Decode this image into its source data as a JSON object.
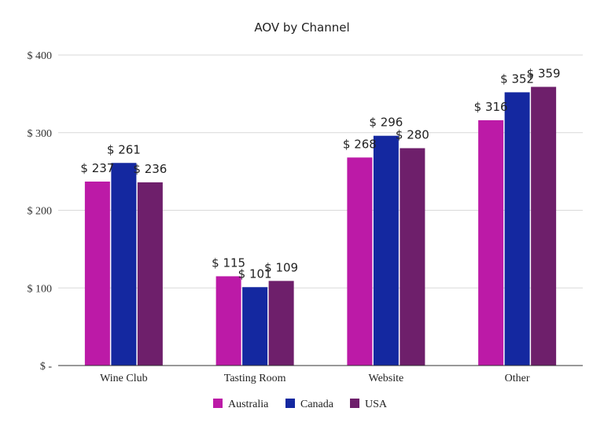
{
  "chart_data": {
    "type": "bar",
    "title": "AOV by Channel",
    "categories": [
      "Wine Club",
      "Tasting Room",
      "Website",
      "Other"
    ],
    "series": [
      {
        "name": "Australia",
        "values": [
          237,
          115,
          268,
          316
        ],
        "labels": [
          "$ 237",
          "$ 115",
          "$ 268",
          "$ 316"
        ],
        "color": "#BC1AA7"
      },
      {
        "name": "Canada",
        "values": [
          261,
          101,
          296,
          352
        ],
        "labels": [
          "$ 261",
          "$ 101",
          "$ 296",
          "$ 352"
        ],
        "color": "#1428A0"
      },
      {
        "name": "USA",
        "values": [
          236,
          109,
          280,
          359
        ],
        "labels": [
          "$ 236",
          "$ 109",
          "$ 280",
          "$ 359"
        ],
        "color": "#6E1F6B"
      }
    ],
    "ylim": [
      0,
      400
    ],
    "yticks": [
      0,
      100,
      200,
      300,
      400
    ],
    "ytick_labels": [
      "$ -",
      "$ 100",
      "$ 200",
      "$ 300",
      "$ 400"
    ],
    "grid": true,
    "legend_position": "bottom"
  }
}
